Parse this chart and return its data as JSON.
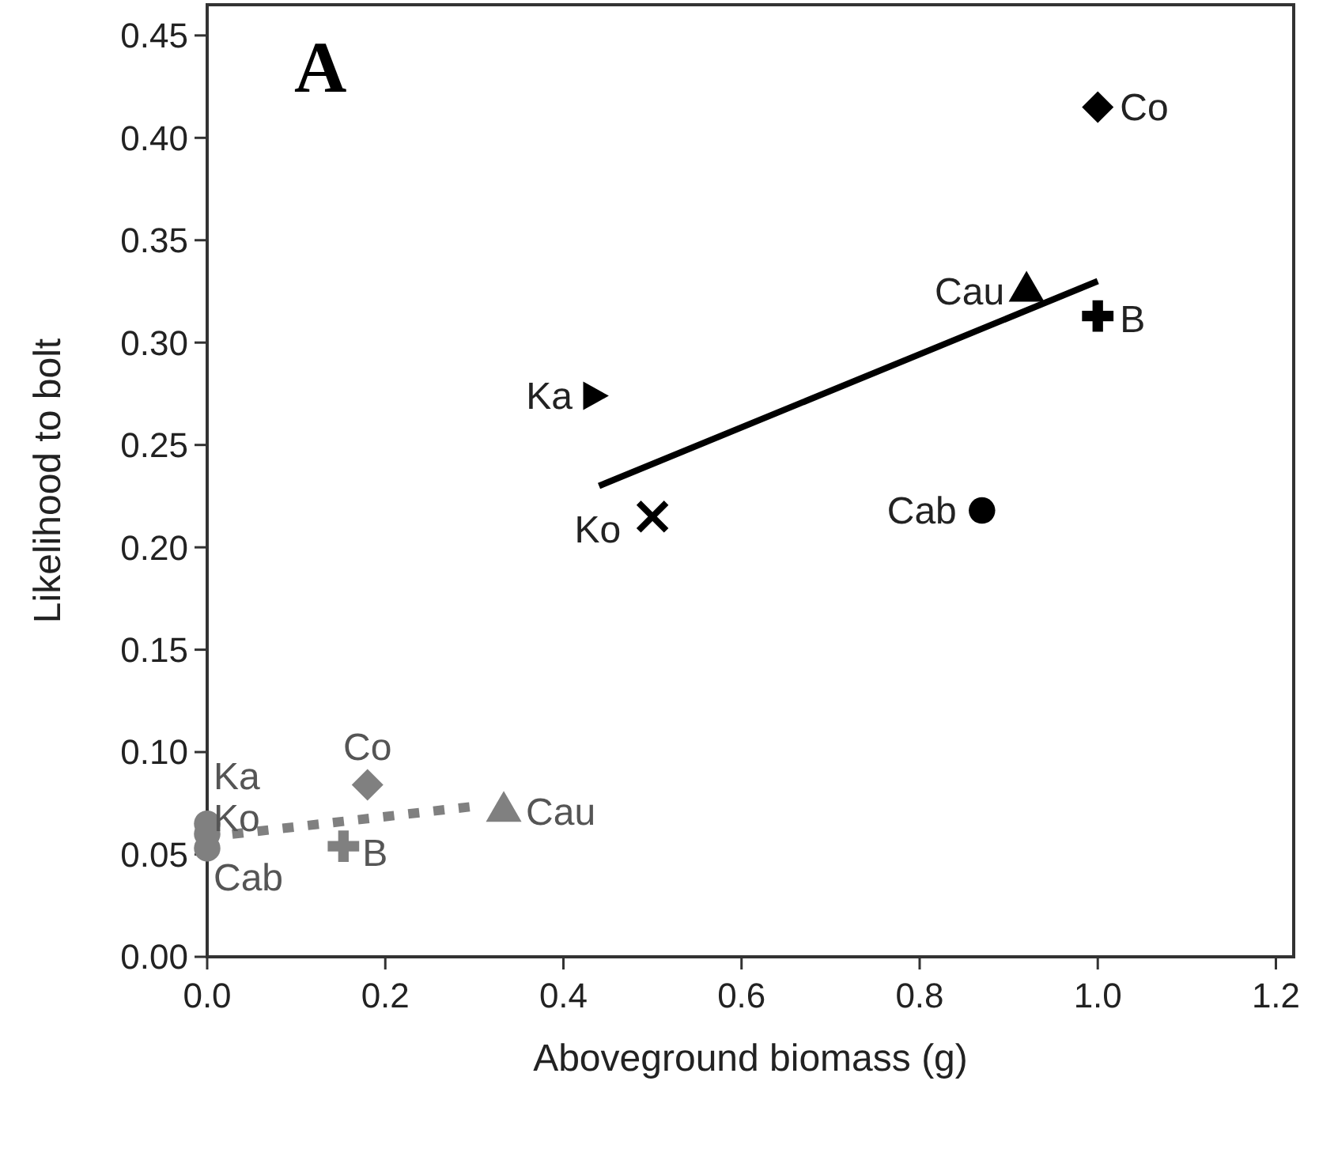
{
  "chart_data": {
    "type": "scatter",
    "title": "A",
    "xlabel": "Aboveground biomass (g)",
    "ylabel": "Likelihood to bolt",
    "xlim": [
      0,
      1.22
    ],
    "ylim": [
      0,
      0.465
    ],
    "xticks": [
      {
        "value": 0,
        "label": "0.0"
      },
      {
        "value": 0.2,
        "label": "0.2"
      },
      {
        "value": 0.4,
        "label": "0.4"
      },
      {
        "value": 0.6,
        "label": "0.6"
      },
      {
        "value": 0.8,
        "label": "0.8"
      },
      {
        "value": 1,
        "label": "1.0"
      },
      {
        "value": 1.2,
        "label": "1.2"
      }
    ],
    "yticks": [
      {
        "value": 0,
        "label": "0.00"
      },
      {
        "value": 0.05,
        "label": "0.05"
      },
      {
        "value": 0.1,
        "label": "0.10"
      },
      {
        "value": 0.15,
        "label": "0.15"
      },
      {
        "value": 0.2,
        "label": "0.20"
      },
      {
        "value": 0.25,
        "label": "0.25"
      },
      {
        "value": 0.3,
        "label": "0.30"
      },
      {
        "value": 0.35,
        "label": "0.35"
      },
      {
        "value": 0.4,
        "label": "0.40"
      },
      {
        "value": 0.45,
        "label": "0.45"
      }
    ],
    "grid": false,
    "series": [
      {
        "color": "#000000",
        "marker": "diamond",
        "x": [
          1.0
        ],
        "values": [
          0.415
        ]
      },
      {
        "color": "#000000",
        "marker": "triangle",
        "x": [
          0.92
        ],
        "values": [
          0.325
        ]
      },
      {
        "color": "#000000",
        "marker": "cross",
        "x": [
          1.0
        ],
        "values": [
          0.313
        ]
      },
      {
        "color": "#000000",
        "marker": "triangle-right",
        "x": [
          0.435
        ],
        "values": [
          0.274
        ]
      },
      {
        "color": "#000000",
        "marker": "x",
        "x": [
          0.5
        ],
        "values": [
          0.215
        ]
      },
      {
        "color": "#000000",
        "marker": "circle",
        "x": [
          0.87
        ],
        "values": [
          0.218
        ]
      },
      {
        "type": "line",
        "color": "#000000",
        "line_style": "solid",
        "x": [
          0.44,
          1.0
        ],
        "values": [
          0.23,
          0.33
        ]
      },
      {
        "color": "#808080",
        "marker": "circle",
        "x": [
          0,
          0,
          0
        ],
        "values": [
          0.065,
          0.06,
          0.053
        ]
      },
      {
        "color": "#808080",
        "marker": "diamond",
        "x": [
          0.18
        ],
        "values": [
          0.084
        ]
      },
      {
        "color": "#808080",
        "marker": "cross",
        "x": [
          0.153
        ],
        "values": [
          0.054
        ]
      },
      {
        "color": "#808080",
        "marker": "triangle",
        "x": [
          0.333
        ],
        "values": [
          0.071
        ]
      },
      {
        "type": "line",
        "color": "#808080",
        "line_style": "dotted",
        "x": [
          0,
          0.31
        ],
        "values": [
          0.0585,
          0.074
        ]
      }
    ],
    "annotations": [
      {
        "text": "Co",
        "x": 1.0,
        "y": 0.415
      },
      {
        "text": "Cau",
        "x": 0.92,
        "y": 0.325
      },
      {
        "text": "B",
        "x": 1.0,
        "y": 0.313
      },
      {
        "text": "Ka",
        "x": 0.435,
        "y": 0.274
      },
      {
        "text": "Ko",
        "x": 0.5,
        "y": 0.215
      },
      {
        "text": "Cab",
        "x": 0.87,
        "y": 0.218
      },
      {
        "text": "Ka",
        "x": 0,
        "y": 0.065
      },
      {
        "text": "Ko",
        "x": 0,
        "y": 0.06
      },
      {
        "text": "Cab",
        "x": 0,
        "y": 0.053
      },
      {
        "text": "Co",
        "x": 0.18,
        "y": 0.084
      },
      {
        "text": "B",
        "x": 0.153,
        "y": 0.054
      },
      {
        "text": "Cau",
        "x": 0.333,
        "y": 0.071
      }
    ]
  }
}
